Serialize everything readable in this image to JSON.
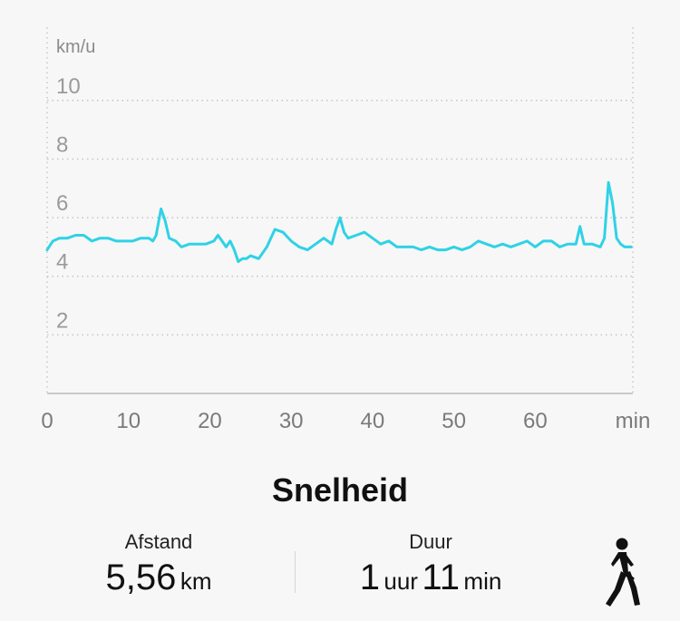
{
  "chart_data": {
    "type": "line",
    "title": "",
    "ylabel": "km/u",
    "xlabel": "min",
    "xlim": [
      0,
      72
    ],
    "ylim": [
      0,
      12.5
    ],
    "x_ticks": [
      "0",
      "10",
      "20",
      "30",
      "40",
      "50",
      "60"
    ],
    "y_ticks": [
      "2",
      "4",
      "6",
      "8",
      "10"
    ],
    "grid": true,
    "series": [
      {
        "name": "",
        "color": "#2fd2e6",
        "x": [
          0,
          0.7,
          1.5,
          2.5,
          3.5,
          4.5,
          5.5,
          6.5,
          7.5,
          8.5,
          9.5,
          10.5,
          11.5,
          12.5,
          13,
          13.4,
          14,
          14.5,
          15,
          15.8,
          16.5,
          17.5,
          18.5,
          19.5,
          20.5,
          21,
          21.5,
          22,
          22.5,
          23,
          23.5,
          24,
          24.5,
          25,
          26,
          27,
          28,
          29,
          30,
          31,
          32,
          33,
          34,
          34.5,
          35,
          35.5,
          36,
          36.5,
          37,
          38,
          39,
          40,
          41,
          42,
          43,
          44,
          45,
          46,
          47,
          48,
          49,
          50,
          51,
          52,
          53,
          54,
          55,
          56,
          57,
          58,
          59,
          60,
          61,
          62,
          63,
          64,
          65,
          65.5,
          66,
          67,
          68,
          68.5,
          69,
          69.5,
          70,
          70.5,
          71,
          71.8
        ],
        "values": [
          4.9,
          5.2,
          5.3,
          5.3,
          5.4,
          5.4,
          5.2,
          5.3,
          5.3,
          5.2,
          5.2,
          5.2,
          5.3,
          5.3,
          5.2,
          5.4,
          6.3,
          5.9,
          5.3,
          5.2,
          5.0,
          5.1,
          5.1,
          5.1,
          5.2,
          5.4,
          5.2,
          5.0,
          5.2,
          4.9,
          4.5,
          4.6,
          4.6,
          4.7,
          4.6,
          5.0,
          5.6,
          5.5,
          5.2,
          5.0,
          4.9,
          5.1,
          5.3,
          5.2,
          5.1,
          5.6,
          6.0,
          5.5,
          5.3,
          5.4,
          5.5,
          5.3,
          5.1,
          5.2,
          5.0,
          5.0,
          5.0,
          4.9,
          5.0,
          4.9,
          4.9,
          5.0,
          4.9,
          5.0,
          5.2,
          5.1,
          5.0,
          5.1,
          5.0,
          5.1,
          5.2,
          5.0,
          5.2,
          5.2,
          5.0,
          5.1,
          5.1,
          5.7,
          5.1,
          5.1,
          5.0,
          5.3,
          7.2,
          6.5,
          5.3,
          5.1,
          5.0,
          5.0
        ]
      }
    ]
  },
  "summary": {
    "title": "Snelheid",
    "distance": {
      "label": "Afstand",
      "value": "5,56",
      "unit": "km"
    },
    "duration": {
      "label": "Duur",
      "hours": "1",
      "hours_unit": "uur",
      "minutes": "11",
      "minutes_unit": "min"
    },
    "activity_icon": "walking-person-icon"
  }
}
